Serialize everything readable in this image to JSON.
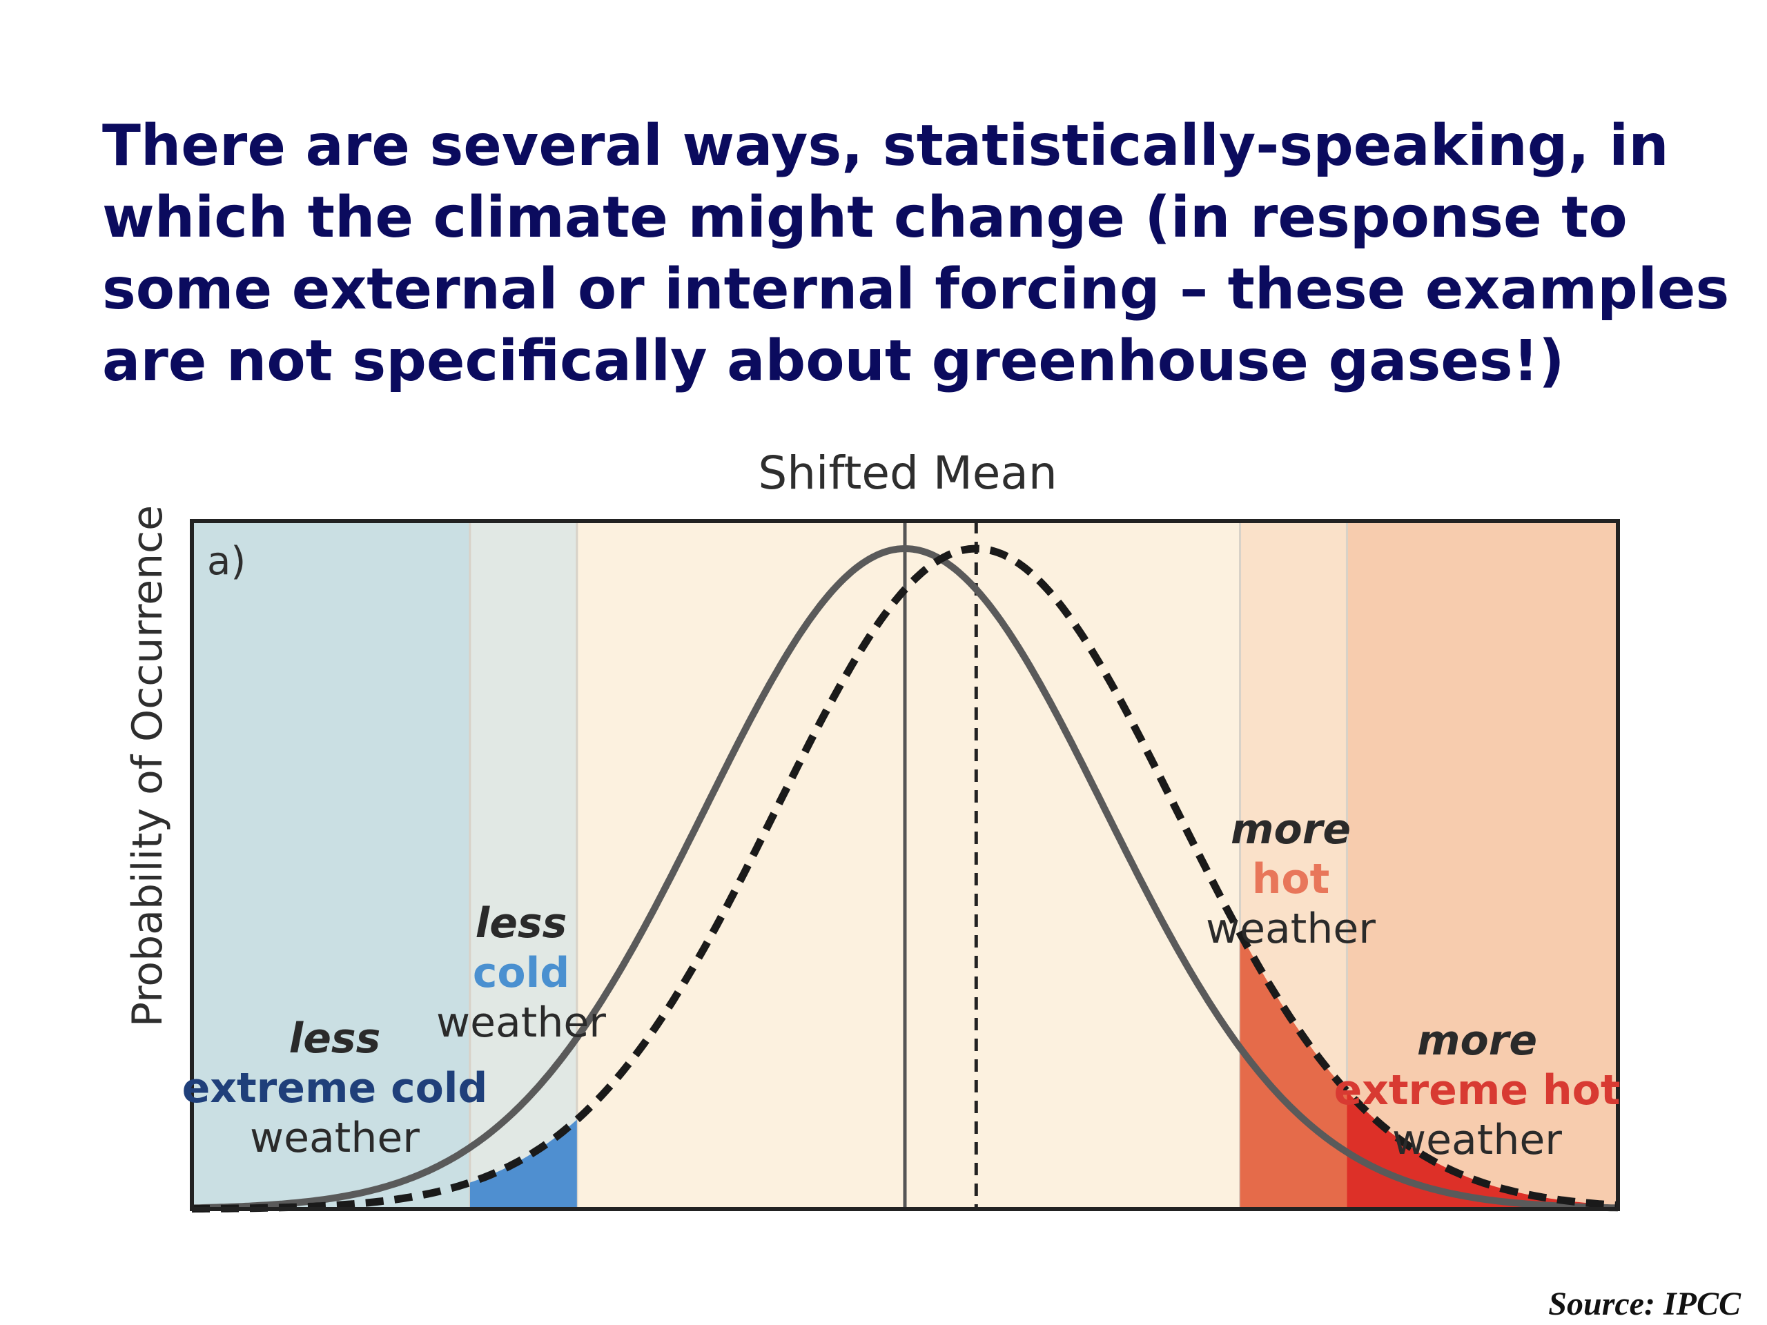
{
  "slide": {
    "heading_lines": [
      "There are several ways, statistically-speaking, in",
      "which the climate might change (in response to",
      "some external or internal forcing – these examples",
      "are not specifically about greenhouse gases!)"
    ],
    "source": "Source: IPCC"
  },
  "chart_data": {
    "type": "area",
    "title": "Shifted Mean",
    "panel_label": "a)",
    "ylabel": "Probability of Occurrence",
    "xlabel": "",
    "x_range": [
      -5,
      5
    ],
    "distributions": [
      {
        "style": "solid",
        "mean": 0.0,
        "sd": 1.4,
        "peak": 1.0
      },
      {
        "style": "dashed",
        "mean": 0.5,
        "sd": 1.4,
        "peak": 1.0
      }
    ],
    "regions": [
      {
        "from": -5.0,
        "to": -3.05,
        "color": "#cadfe3"
      },
      {
        "from": -3.05,
        "to": -2.3,
        "color": "#e1e8e4"
      },
      {
        "from": -2.3,
        "to": 2.35,
        "color": "#fcf1df"
      },
      {
        "from": 2.35,
        "to": 3.1,
        "color": "#fae1c9"
      },
      {
        "from": 3.1,
        "to": 5.0,
        "color": "#f7ccae"
      }
    ],
    "tail_fills": [
      {
        "from": -3.05,
        "to": -2.3,
        "color": "#4f8fd0"
      },
      {
        "from": 2.35,
        "to": 3.1,
        "color": "#e56b4a"
      },
      {
        "from": 3.1,
        "to": 5.0,
        "color": "#dd3028"
      }
    ],
    "annotations": [
      {
        "lines": [
          "less",
          "extreme cold",
          "weather"
        ],
        "colors": [
          "#2a2a2a",
          "#1f3f7a",
          "#2a2a2a"
        ]
      },
      {
        "lines": [
          "less",
          "cold",
          "weather"
        ],
        "colors": [
          "#2a2a2a",
          "#4a90d0",
          "#2a2a2a"
        ]
      },
      {
        "lines": [
          "more",
          "hot",
          "weather"
        ],
        "colors": [
          "#2a2a2a",
          "#e8765a",
          "#2a2a2a"
        ]
      },
      {
        "lines": [
          "more",
          "extreme hot",
          "weather"
        ],
        "colors": [
          "#2a2a2a",
          "#d83a32",
          "#2a2a2a"
        ]
      }
    ],
    "grid": false,
    "legend": "none"
  }
}
